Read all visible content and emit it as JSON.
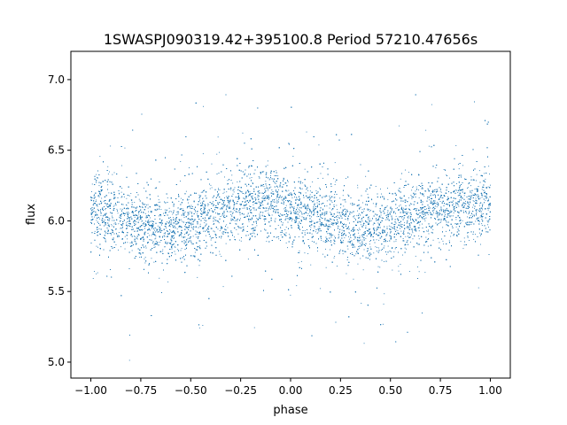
{
  "chart_data": {
    "type": "scatter",
    "title": "1SWASPJ090319.42+395100.8 Period 57210.47656s",
    "xlabel": "phase",
    "ylabel": "flux",
    "xlim": [
      -1.1,
      1.1
    ],
    "ylim": [
      4.887,
      7.2
    ],
    "xticks": [
      "−1.00",
      "−0.75",
      "−0.50",
      "−0.25",
      "0.00",
      "0.25",
      "0.50",
      "0.75",
      "1.00"
    ],
    "xtick_values": [
      -1,
      -0.75,
      -0.5,
      -0.25,
      0,
      0.25,
      0.5,
      0.75,
      1
    ],
    "yticks": [
      "5.0",
      "5.5",
      "6.0",
      "6.5",
      "7.0"
    ],
    "ytick_values": [
      5.0,
      5.5,
      6.0,
      6.5,
      7.0
    ],
    "grid": false,
    "marker_color": "#1f77b4",
    "phase_range": [
      -1,
      1
    ],
    "mean_curve": {
      "phase": [
        -1.0,
        -0.9,
        -0.8,
        -0.7,
        -0.6,
        -0.5,
        -0.4,
        -0.3,
        -0.2,
        -0.1,
        0.0,
        0.1,
        0.2,
        0.3,
        0.4,
        0.5,
        0.6,
        0.7,
        0.8,
        0.9,
        1.0
      ],
      "flux": [
        6.08,
        6.05,
        6.0,
        5.96,
        5.95,
        5.98,
        6.03,
        6.08,
        6.11,
        6.12,
        6.1,
        6.05,
        6.0,
        5.96,
        5.94,
        5.98,
        6.03,
        6.08,
        6.1,
        6.11,
        6.1
      ]
    },
    "scatter_sigma": 0.12,
    "approx_point_count": 14000
  }
}
